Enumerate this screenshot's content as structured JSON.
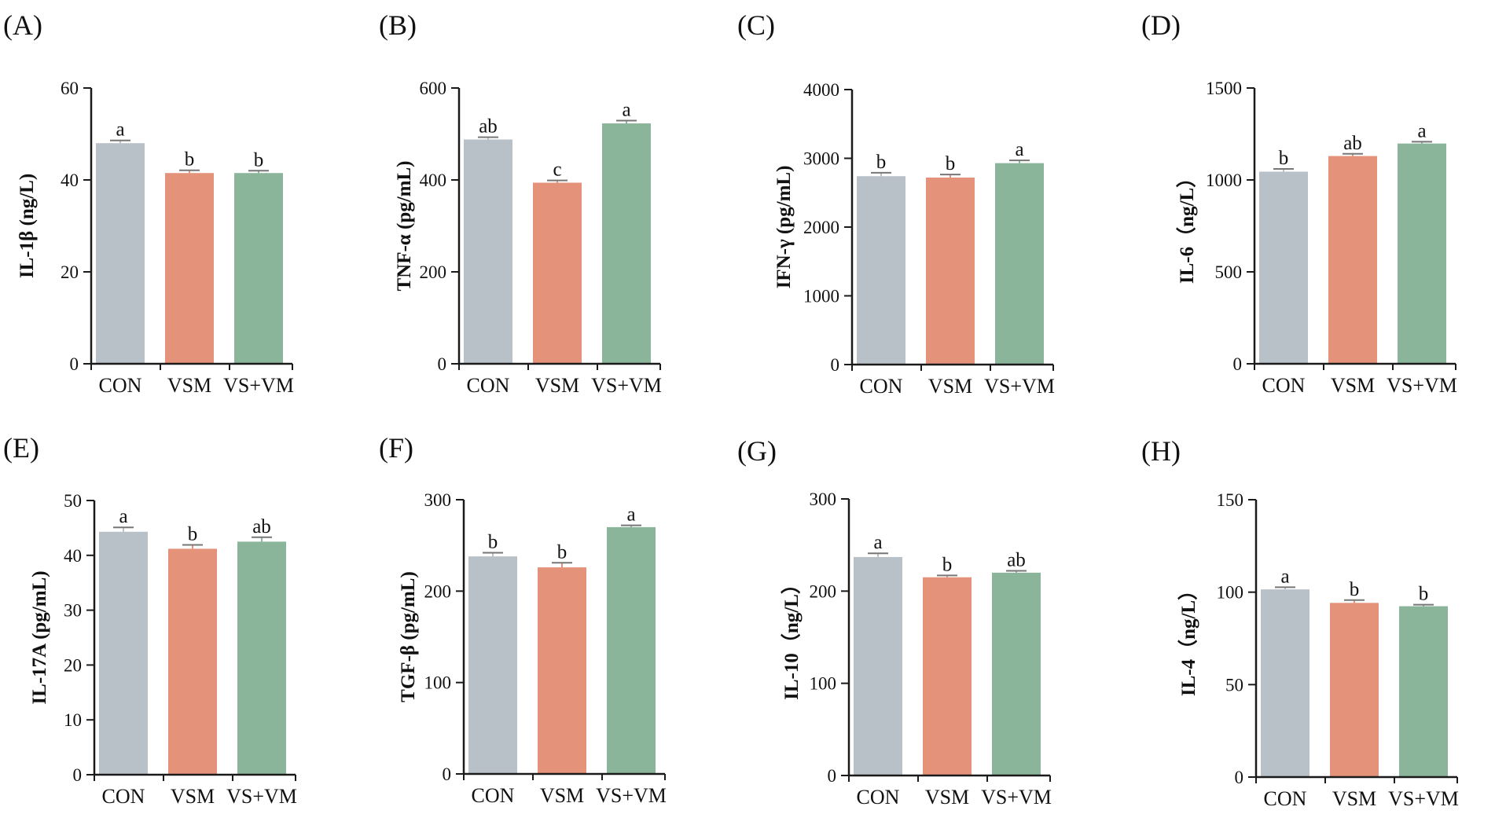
{
  "figure": {
    "categories": [
      "CON",
      "VSM",
      "VS+VM"
    ],
    "colors": [
      "#b9c1c8",
      "#e5927a",
      "#8ab59a"
    ],
    "axis_color": "#1a1a1a"
  },
  "chart_data": [
    {
      "type": "bar",
      "panel": "(A)",
      "title": "",
      "xlabel": "",
      "ylabel": "IL-1β (ng/L)",
      "categories": [
        "CON",
        "VSM",
        "VS+VM"
      ],
      "values": [
        48,
        41.5,
        41.5
      ],
      "errors": [
        0.6,
        0.6,
        0.5
      ],
      "labels": [
        "a",
        "b",
        "b"
      ],
      "ylim": [
        0,
        60
      ],
      "yticks": [
        0,
        20,
        40,
        60
      ]
    },
    {
      "type": "bar",
      "panel": "(B)",
      "title": "",
      "xlabel": "",
      "ylabel": "TNF-α (pg/mL)",
      "categories": [
        "CON",
        "VSM",
        "VS+VM"
      ],
      "values": [
        488,
        394,
        523
      ],
      "errors": [
        5,
        5,
        6
      ],
      "labels": [
        "ab",
        "c",
        "a"
      ],
      "ylim": [
        0,
        600
      ],
      "yticks": [
        0,
        200,
        400,
        600
      ]
    },
    {
      "type": "bar",
      "panel": "(C)",
      "title": "",
      "xlabel": "",
      "ylabel": "IFN-γ (pg/mL)",
      "categories": [
        "CON",
        "VSM",
        "VS+VM"
      ],
      "values": [
        2740,
        2720,
        2930
      ],
      "errors": [
        50,
        45,
        40
      ],
      "labels": [
        "b",
        "b",
        "a"
      ],
      "ylim": [
        0,
        4000
      ],
      "yticks": [
        0,
        1000,
        2000,
        3000,
        4000
      ]
    },
    {
      "type": "bar",
      "panel": "(D)",
      "title": "",
      "xlabel": "",
      "ylabel": "IL-6（ng/L）",
      "categories": [
        "CON",
        "VSM",
        "VS+VM"
      ],
      "values": [
        1045,
        1130,
        1198
      ],
      "errors": [
        15,
        12,
        10
      ],
      "labels": [
        "b",
        "ab",
        "a"
      ],
      "ylim": [
        0,
        1500
      ],
      "yticks": [
        0,
        500,
        1000,
        1500
      ]
    },
    {
      "type": "bar",
      "panel": "(E)",
      "title": "",
      "xlabel": "",
      "ylabel": "IL-17A (pg/mL)",
      "categories": [
        "CON",
        "VSM",
        "VS+VM"
      ],
      "values": [
        44.3,
        41.2,
        42.5
      ],
      "errors": [
        0.8,
        0.7,
        0.8
      ],
      "labels": [
        "a",
        "b",
        "ab"
      ],
      "ylim": [
        0,
        50
      ],
      "yticks": [
        0,
        10,
        20,
        30,
        40,
        50
      ]
    },
    {
      "type": "bar",
      "panel": "(F)",
      "title": "",
      "xlabel": "",
      "ylabel": "TGF-β (pg/mL)",
      "categories": [
        "CON",
        "VSM",
        "VS+VM"
      ],
      "values": [
        238,
        226,
        270
      ],
      "errors": [
        4,
        5,
        2
      ],
      "labels": [
        "b",
        "b",
        "a"
      ],
      "ylim": [
        0,
        300
      ],
      "yticks": [
        0,
        100,
        200,
        300
      ]
    },
    {
      "type": "bar",
      "panel": "(G)",
      "title": "",
      "xlabel": "",
      "ylabel": "IL-10（ng/L）",
      "categories": [
        "CON",
        "VSM",
        "VS+VM"
      ],
      "values": [
        237,
        215,
        220
      ],
      "errors": [
        4,
        2,
        2
      ],
      "labels": [
        "a",
        "b",
        "ab"
      ],
      "ylim": [
        0,
        300
      ],
      "yticks": [
        0,
        100,
        200,
        300
      ]
    },
    {
      "type": "bar",
      "panel": "(H)",
      "title": "",
      "xlabel": "",
      "ylabel": "IL-4（ng/L）",
      "categories": [
        "CON",
        "VSM",
        "VS+VM"
      ],
      "values": [
        101.5,
        94.2,
        92.4
      ],
      "errors": [
        1.2,
        1.5,
        0.8
      ],
      "labels": [
        "a",
        "b",
        "b"
      ],
      "ylim": [
        0,
        150
      ],
      "yticks": [
        0,
        50,
        100,
        150
      ]
    }
  ]
}
